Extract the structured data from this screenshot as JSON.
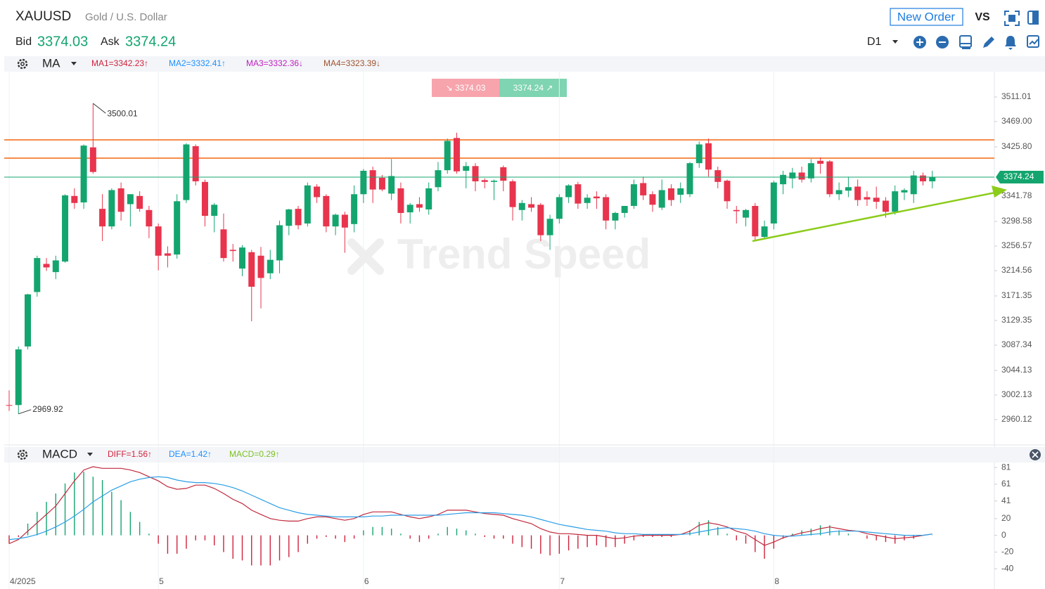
{
  "header": {
    "symbol": "XAUUSD",
    "name": "Gold / U.S. Dollar",
    "new_order": "New Order",
    "vs": "VS",
    "bid_label": "Bid",
    "bid": "3374.03",
    "ask_label": "Ask",
    "ask": "3374.24",
    "timeframe": "D1"
  },
  "indicator_bar": {
    "name": "MA",
    "items": [
      {
        "text": "MA1=3342.23↑",
        "color": "#d0213b"
      },
      {
        "text": "MA2=3332.41↑",
        "color": "#1e90ff"
      },
      {
        "text": "MA3=3332.36↓",
        "color": "#c020c0"
      },
      {
        "text": "MA4=3323.39↓",
        "color": "#a0522d"
      }
    ]
  },
  "macd_bar": {
    "name": "MACD",
    "items": [
      {
        "text": "DIFF=1.56↑",
        "color": "#d0213b"
      },
      {
        "text": "DEA=1.42↑",
        "color": "#1e90ff"
      },
      {
        "text": "MACD=0.29↑",
        "color": "#7cc11f"
      }
    ]
  },
  "watermark": "Trend Speed",
  "chart_data": [
    {
      "type": "candlestick",
      "categories": [
        "4/2025",
        null,
        null,
        null,
        null,
        null,
        null,
        null,
        null,
        null,
        null,
        null,
        null,
        null,
        null,
        null,
        "5",
        null,
        null,
        null,
        null,
        null,
        null,
        null,
        null,
        null,
        null,
        null,
        null,
        null,
        null,
        null,
        null,
        null,
        null,
        null,
        null,
        null,
        "6",
        null,
        null,
        null,
        null,
        null,
        null,
        null,
        null,
        null,
        null,
        null,
        null,
        null,
        null,
        null,
        null,
        null,
        null,
        null,
        null,
        "7",
        null,
        null,
        null,
        null,
        null,
        null,
        null,
        null,
        null,
        null,
        null,
        null,
        null,
        null,
        null,
        null,
        null,
        null,
        null,
        null,
        null,
        null,
        "8",
        null,
        null,
        null,
        null,
        null,
        null,
        null,
        null,
        null,
        null,
        null,
        null,
        null,
        null,
        null,
        null,
        null
      ],
      "open": [
        2985,
        2985,
        3085,
        3178,
        3226,
        3212,
        3230,
        3342,
        3331,
        3425,
        3320,
        3290,
        3355,
        3328,
        3342,
        3318,
        3290,
        3244,
        3242,
        3335,
        3427,
        3366,
        3308,
        3285,
        3250,
        3218,
        3246,
        3240,
        3210,
        3232,
        3291,
        3320,
        3295,
        3358,
        3342,
        3290,
        3310,
        3294,
        3345,
        3386,
        3373,
        3346,
        3355,
        3314,
        3328,
        3319,
        3357,
        3386,
        3441,
        3385,
        3393,
        3369,
        3366,
        3391,
        3367,
        3318,
        3328,
        3327,
        3275,
        3303,
        3340,
        3362,
        3330,
        3341,
        3340,
        3300,
        3313,
        3325,
        3364,
        3345,
        3322,
        3355,
        3344,
        3345,
        3398,
        3432,
        3386,
        3368,
        3318,
        3305,
        3325,
        3272,
        3295,
        3362,
        3372,
        3382,
        3372,
        3402,
        3401,
        3345,
        3351,
        3358,
        3340,
        3339,
        3334,
        3315,
        3348,
        3345,
        3377,
        3367
      ],
      "high": [
        3010,
        3085,
        3175,
        3240,
        3236,
        3240,
        3345,
        3355,
        3430,
        3500.01,
        3345,
        3355,
        3365,
        3345,
        3350,
        3325,
        3295,
        3256,
        3345,
        3432,
        3430,
        3370,
        3330,
        3312,
        3260,
        3258,
        3250,
        3255,
        3250,
        3300,
        3320,
        3325,
        3365,
        3362,
        3345,
        3312,
        3315,
        3360,
        3388,
        3392,
        3378,
        3405,
        3365,
        3330,
        3340,
        3365,
        3400,
        3440,
        3450,
        3400,
        3398,
        3372,
        3370,
        3394,
        3370,
        3335,
        3340,
        3330,
        3310,
        3345,
        3362,
        3366,
        3345,
        3350,
        3345,
        3315,
        3325,
        3370,
        3375,
        3350,
        3370,
        3362,
        3365,
        3400,
        3435,
        3440,
        3392,
        3370,
        3325,
        3320,
        3330,
        3300,
        3368,
        3385,
        3390,
        3392,
        3405,
        3408,
        3403,
        3365,
        3375,
        3370,
        3350,
        3358,
        3340,
        3360,
        3355,
        3385,
        3382,
        3385
      ],
      "low": [
        2975,
        2969.92,
        3080,
        3170,
        3214,
        3200,
        3228,
        3320,
        3320,
        3380,
        3265,
        3285,
        3300,
        3290,
        3315,
        3270,
        3215,
        3220,
        3235,
        3330,
        3360,
        3290,
        3280,
        3230,
        3230,
        3205,
        3128,
        3150,
        3200,
        3210,
        3275,
        3285,
        3290,
        3330,
        3280,
        3275,
        3245,
        3280,
        3330,
        3330,
        3350,
        3335,
        3295,
        3295,
        3315,
        3310,
        3350,
        3380,
        3380,
        3355,
        3350,
        3355,
        3335,
        3350,
        3300,
        3300,
        3315,
        3265,
        3250,
        3295,
        3330,
        3320,
        3320,
        3320,
        3285,
        3285,
        3305,
        3320,
        3335,
        3315,
        3318,
        3325,
        3330,
        3340,
        3390,
        3375,
        3355,
        3320,
        3295,
        3290,
        3265,
        3268,
        3285,
        3345,
        3355,
        3365,
        3365,
        3380,
        3340,
        3335,
        3340,
        3325,
        3325,
        3320,
        3305,
        3310,
        3335,
        3330,
        3360,
        3355
      ],
      "close": [
        2984,
        3080,
        3174,
        3236,
        3220,
        3232,
        3343,
        3330,
        3428,
        3383,
        3290,
        3352,
        3315,
        3345,
        3320,
        3290,
        3240,
        3240,
        3333,
        3430,
        3367,
        3308,
        3327,
        3236,
        3248,
        3254,
        3187,
        3202,
        3233,
        3292,
        3319,
        3292,
        3360,
        3340,
        3290,
        3310,
        3288,
        3345,
        3385,
        3353,
        3353,
        3376,
        3313,
        3327,
        3322,
        3355,
        3386,
        3436,
        3384,
        3393,
        3367,
        3366,
        3368,
        3368,
        3323,
        3330,
        3322,
        3275,
        3303,
        3340,
        3360,
        3329,
        3339,
        3338,
        3300,
        3313,
        3325,
        3362,
        3343,
        3327,
        3352,
        3335,
        3355,
        3398,
        3430,
        3387,
        3366,
        3333,
        3316,
        3318,
        3273,
        3290,
        3365,
        3378,
        3382,
        3370,
        3398,
        3397,
        3345,
        3352,
        3357,
        3335,
        3336,
        3332,
        3315,
        3350,
        3352,
        3377,
        3367,
        3374.24
      ],
      "up_color": "#14a56f",
      "down_color": "#e8344d",
      "ylim": [
        2916.9,
        3554.2
      ],
      "yticks": [
        3511.01,
        {
          "value": 3469.0,
          "label": "3469.00"
        },
        {
          "value": 3425.8,
          "label": "3425.80"
        },
        3341.78,
        3298.58,
        3256.57,
        3214.56,
        3171.35,
        3129.35,
        3087.34,
        3044.13,
        3002.13,
        2960.12
      ],
      "hlines": [
        {
          "value": 3437.8,
          "color": "#f47c30"
        },
        {
          "value": 3406.6,
          "color": "#f47c30"
        }
      ],
      "last_price": 3374.24,
      "last_color": "#14a56f",
      "bid_tag": "↘ 3374.03",
      "ask_tag": "3374.24 ↗"
    },
    {
      "type": "macd",
      "series": [
        {
          "color": "#c0283c",
          "values": [
            -10,
            -5,
            5,
            15,
            25,
            35,
            50,
            65,
            78,
            82,
            80,
            80,
            80,
            78,
            75,
            70,
            65,
            58,
            55,
            56,
            60,
            60,
            56,
            50,
            43,
            38,
            30,
            25,
            20,
            18,
            17,
            17,
            20,
            22,
            22,
            20,
            18,
            20,
            25,
            28,
            28,
            28,
            25,
            22,
            20,
            22,
            25,
            30,
            30,
            30,
            28,
            26,
            25,
            24,
            20,
            17,
            14,
            8,
            4,
            2,
            2,
            1,
            0,
            0,
            -2,
            -4,
            -3,
            -1,
            0,
            0,
            0,
            0,
            1,
            5,
            12,
            15,
            13,
            10,
            5,
            2,
            -5,
            -12,
            -8,
            -3,
            0,
            3,
            5,
            8,
            10,
            8,
            6,
            5,
            2,
            0,
            -2,
            -4,
            -3,
            -2,
            0,
            1.56
          ]
        },
        {
          "color": "#2a9ee6",
          "values": [
            -5,
            -4,
            -2,
            1,
            5,
            10,
            16,
            23,
            31,
            40,
            47,
            54,
            59,
            64,
            67,
            69,
            70,
            69,
            66,
            64,
            63,
            63,
            62,
            60,
            57,
            53,
            48,
            43,
            38,
            33,
            30,
            27,
            25,
            24,
            23,
            22,
            22,
            22,
            22,
            23,
            23,
            24,
            24,
            24,
            24,
            24,
            24,
            25,
            26,
            27,
            27,
            27,
            27,
            26,
            25,
            24,
            22,
            19,
            16,
            13,
            11,
            9,
            7,
            6,
            5,
            3,
            2,
            2,
            1,
            1,
            1,
            1,
            1,
            2,
            4,
            6,
            8,
            9,
            8,
            7,
            5,
            2,
            0,
            -1,
            -1,
            0,
            1,
            2,
            4,
            5,
            5,
            5,
            4,
            3,
            2,
            1,
            0,
            0,
            0,
            1.42
          ]
        }
      ],
      "histogram": {
        "up_color": "#14a56f",
        "down_color": "#d0213b",
        "values": [
          -10,
          -2,
          14,
          28,
          40,
          50,
          62,
          75,
          76,
          70,
          66,
          52,
          42,
          28,
          16,
          2,
          -10,
          -22,
          -22,
          -16,
          -6,
          -6,
          -12,
          -20,
          -28,
          -30,
          -36,
          -36,
          -36,
          -30,
          -26,
          -20,
          -10,
          -4,
          -2,
          -4,
          -8,
          -4,
          6,
          10,
          10,
          8,
          2,
          -4,
          -8,
          -4,
          2,
          10,
          8,
          6,
          2,
          -2,
          -4,
          -4,
          -10,
          -14,
          -16,
          -22,
          -24,
          -22,
          -18,
          -16,
          -14,
          -12,
          -14,
          -14,
          -10,
          -6,
          -2,
          -2,
          -2,
          -2,
          0,
          6,
          16,
          18,
          10,
          2,
          -6,
          -10,
          -20,
          -28,
          -16,
          -4,
          2,
          6,
          8,
          12,
          12,
          6,
          2,
          0,
          -4,
          -6,
          -8,
          -10,
          -6,
          -4,
          0,
          0.29
        ]
      },
      "ylim": [
        -49,
        87
      ],
      "yticks": [
        81,
        61,
        41,
        20,
        0,
        -20,
        -40
      ]
    }
  ]
}
